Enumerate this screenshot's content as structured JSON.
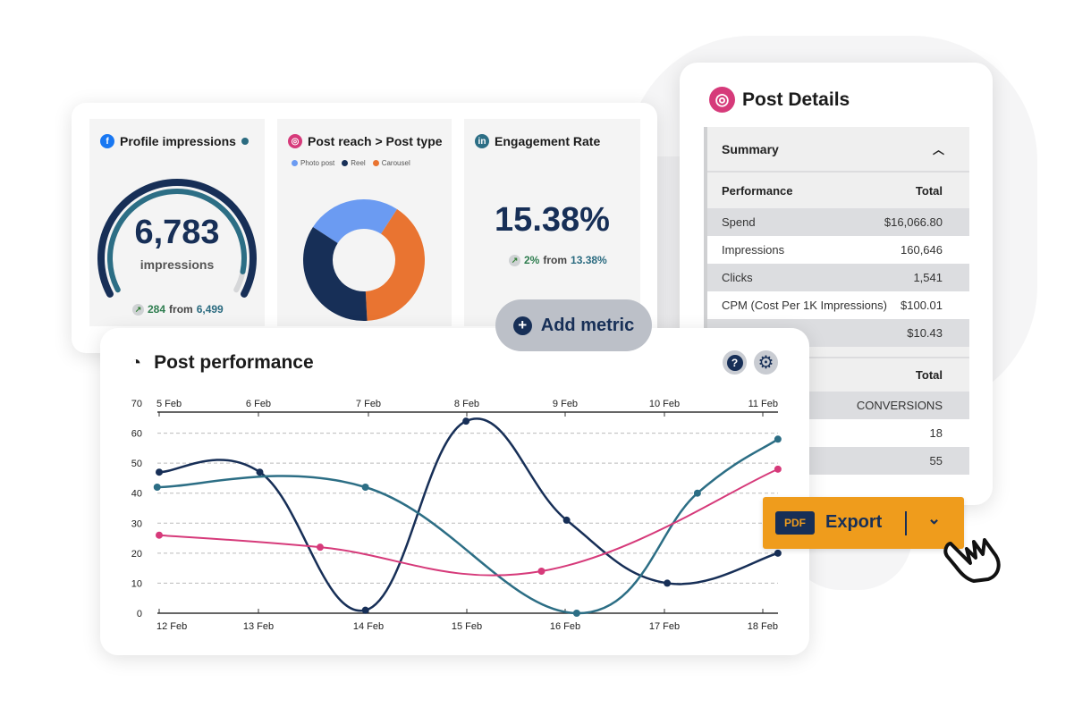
{
  "cards": {
    "profile_impressions": {
      "title": "Profile impressions",
      "value": "6,783",
      "unit": "impressions",
      "delta": "284",
      "from_label": "from",
      "previous": "6,499",
      "gauge_fill": 0.93,
      "icon": "facebook-icon"
    },
    "post_reach": {
      "title": "Post reach > Post type",
      "icon": "instagram-icon",
      "legend": [
        {
          "label": "Photo post",
          "color": "#6b9bf2",
          "value": 25
        },
        {
          "label": "Reel",
          "color": "#172f57",
          "value": 35
        },
        {
          "label": "Carousel",
          "color": "#e97431",
          "value": 40
        }
      ]
    },
    "engagement_rate": {
      "title": "Engagement Rate",
      "value": "15.38%",
      "delta": "2%",
      "from_label": "from",
      "previous": "13.38%",
      "icon": "linkedin-icon"
    }
  },
  "add_metric": {
    "label": "Add metric"
  },
  "post_details": {
    "title": "Post Details",
    "summary_label": "Summary",
    "header": {
      "name": "Performance",
      "total": "Total"
    },
    "rows": [
      {
        "name": "Spend",
        "value": "$16,066.80"
      },
      {
        "name": "Impressions",
        "value": "160,646"
      },
      {
        "name": "Clicks",
        "value": "1,541"
      },
      {
        "name": "CPM (Cost Per 1K Impressions)",
        "value": "$100.01"
      },
      {
        "name": "",
        "value": "$10.43"
      }
    ],
    "header2": {
      "total": "Total"
    },
    "rows2": [
      {
        "value": "CONVERSIONS"
      },
      {
        "value": "18"
      },
      {
        "value": "55"
      }
    ]
  },
  "export": {
    "badge": "PDF",
    "label": "Export"
  },
  "chart_data": {
    "type": "line",
    "title": "Post performance",
    "ylim": [
      0,
      70
    ],
    "yticks": [
      0,
      10,
      20,
      30,
      40,
      50,
      60,
      70
    ],
    "top_ticks": [
      "5 Feb",
      "6 Feb",
      "7 Feb",
      "8 Feb",
      "9 Feb",
      "10 Feb",
      "11 Feb"
    ],
    "bottom_ticks": [
      "12 Feb",
      "13 Feb",
      "14 Feb",
      "15 Feb",
      "16 Feb",
      "17 Feb",
      "18 Feb"
    ],
    "grid": true,
    "series": [
      {
        "color": "#172f57",
        "points": [
          [
            12,
            47
          ],
          [
            13,
            47
          ],
          [
            14.05,
            1
          ],
          [
            15.05,
            64
          ],
          [
            16.05,
            31
          ],
          [
            17.05,
            10
          ],
          [
            18.15,
            20
          ]
        ]
      },
      {
        "color": "#2c6e85",
        "points": [
          [
            11.98,
            42
          ],
          [
            14.05,
            42
          ],
          [
            16.15,
            0
          ],
          [
            17.35,
            40
          ],
          [
            18.15,
            58
          ]
        ]
      },
      {
        "color": "#d63a7a",
        "points": [
          [
            12,
            26
          ],
          [
            13.6,
            22
          ],
          [
            15.8,
            14
          ],
          [
            18.15,
            48
          ]
        ]
      }
    ]
  }
}
